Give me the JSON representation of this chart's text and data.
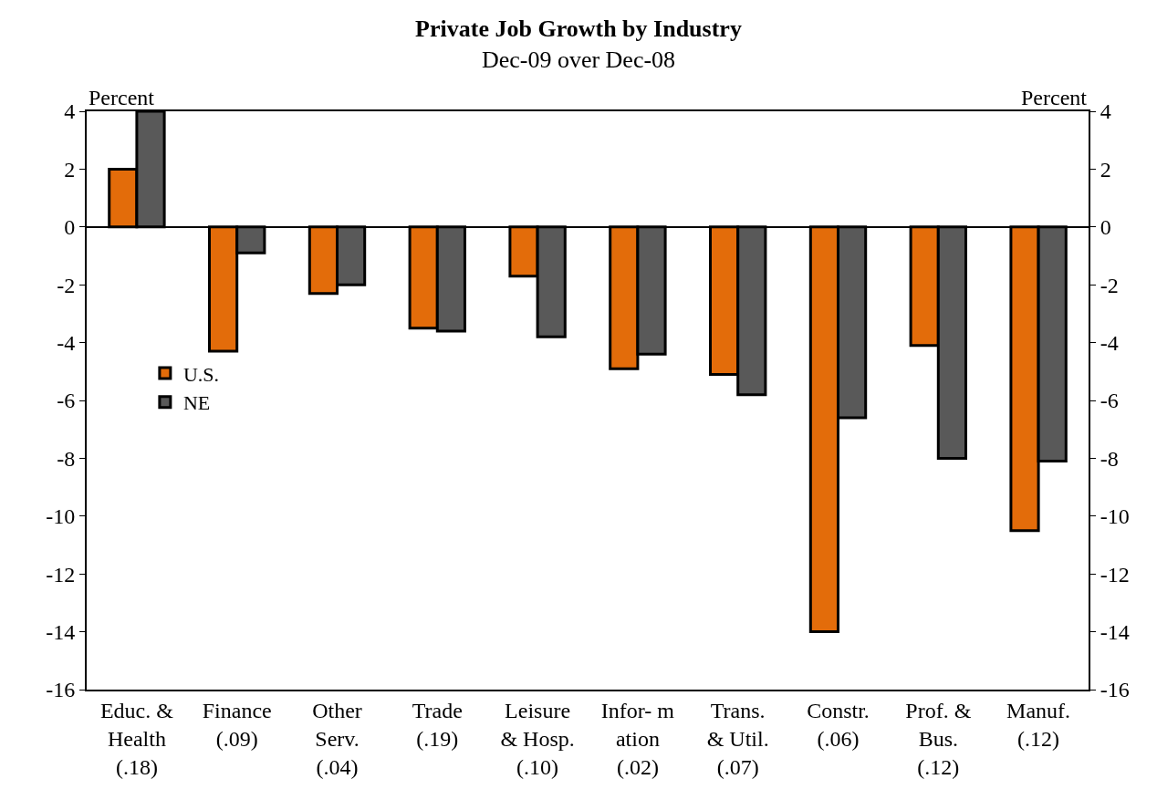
{
  "chart_data": {
    "type": "bar",
    "title": "Private Job Growth by Industry",
    "subtitle": "Dec-09 over Dec-08",
    "ylabel": "Percent",
    "y2label": "Percent",
    "categories": [
      "Educ. &\nHealth\n(.18)",
      "Finance\n(.09)",
      "Other\nServ.\n(.04)",
      "Trade\n(.19)",
      "Leisure\n& Hosp.\n(.10)",
      "Infor- m\nation\n(.02)",
      "Trans.\n& Util.\n(.07)",
      "Constr.\n(.06)",
      "Prof. &\nBus.\n(.12)",
      "Manuf.\n(.12)"
    ],
    "series": [
      {
        "name": "U.S.",
        "color": "#e36c0a",
        "values": [
          2.0,
          -4.3,
          -2.3,
          -3.5,
          -1.7,
          -4.9,
          -5.1,
          -14.0,
          -4.1,
          -10.5
        ]
      },
      {
        "name": "NE",
        "color": "#595959",
        "values": [
          4.0,
          -0.9,
          -2.0,
          -3.6,
          -3.8,
          -4.4,
          -5.8,
          -6.6,
          -8.0,
          -8.1
        ]
      }
    ],
    "ylim": [
      -16,
      4
    ],
    "yticks": [
      -16,
      -14,
      -12,
      -10,
      -8,
      -6,
      -4,
      -2,
      0,
      2,
      4
    ],
    "y2lim": [
      -16,
      4
    ],
    "y2ticks": [
      -16,
      -14,
      -12,
      -10,
      -8,
      -6,
      -4,
      -2,
      0,
      2,
      4
    ],
    "legend": "left"
  }
}
